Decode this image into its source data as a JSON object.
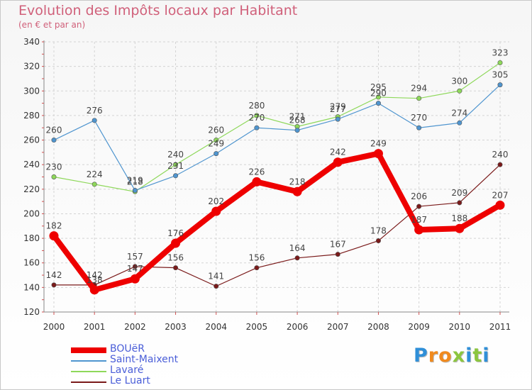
{
  "title": "Evolution des Impôts locaux par Habitant",
  "subtitle": "(en € et par an)",
  "logo": {
    "letters": [
      "P",
      "r",
      "o",
      "x",
      "i",
      "t",
      "i"
    ],
    "colors": [
      "#2f8fd8",
      "#f08a1e",
      "#f08a1e",
      "#8cc63f",
      "#2f8fd8",
      "#8cc63f",
      "#2f8fd8"
    ]
  },
  "chart_data": {
    "type": "line",
    "title": "Evolution des Impôts locaux par Habitant",
    "subtitle": "(en € et par an)",
    "xlabel": "",
    "ylabel": "",
    "ylim": [
      120,
      340
    ],
    "yticks": [
      120,
      140,
      160,
      180,
      200,
      220,
      240,
      260,
      280,
      300,
      320,
      340
    ],
    "ytick_labels": [
      "120",
      "140",
      "160",
      "180",
      "200",
      "220",
      "240",
      "260",
      "280",
      "300",
      "320",
      "340"
    ],
    "x": [
      "2000",
      "2001",
      "2002",
      "2003",
      "2004",
      "2005",
      "2006",
      "2007",
      "2008",
      "2009",
      "2010",
      "2011"
    ],
    "grid": true,
    "legend_position": "bottom-left",
    "series": [
      {
        "name": "Le Luart",
        "color": "#7a1a1a",
        "values": [
          142,
          142,
          157,
          156,
          141,
          156,
          164,
          167,
          178,
          206,
          209,
          240
        ],
        "labels": [
          "142",
          "142",
          "157",
          "156",
          "141",
          "156",
          "164",
          "167",
          "178",
          "206",
          "209",
          "240"
        ]
      },
      {
        "name": "Lavaré",
        "color": "#8ed85a",
        "values": [
          230,
          224,
          218,
          240,
          260,
          280,
          271,
          279,
          295,
          294,
          300,
          323
        ],
        "labels": [
          "230",
          "224",
          "218",
          "240",
          "260",
          "280",
          "271",
          "279",
          "295",
          "294",
          "300",
          "323"
        ]
      },
      {
        "name": "Saint-Maixent",
        "color": "#4f95cf",
        "values": [
          260,
          276,
          219,
          231,
          249,
          270,
          268,
          277,
          290,
          270,
          274,
          305
        ],
        "labels": [
          "260",
          "276",
          "219",
          "231",
          "249",
          "270",
          "268",
          "277",
          "290",
          "270",
          "274",
          "305"
        ]
      },
      {
        "name": "BOUëR",
        "color": "#ee0000",
        "values": [
          182,
          138,
          147,
          176,
          202,
          226,
          218,
          242,
          249,
          187,
          188,
          207
        ],
        "labels": [
          "182",
          "138",
          "147",
          "176",
          "202",
          "226",
          "218",
          "242",
          "249",
          "187",
          "188",
          "207"
        ]
      }
    ],
    "legend": [
      "BOUëR",
      "Saint-Maixent",
      "Lavaré",
      "Le Luart"
    ]
  }
}
